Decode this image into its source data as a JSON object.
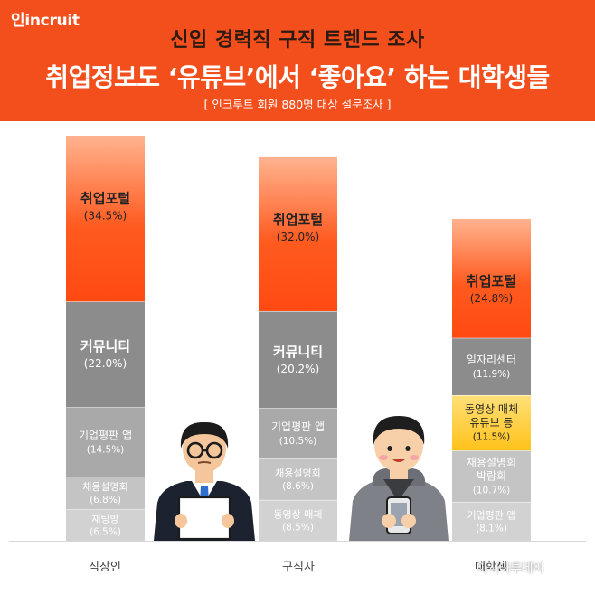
{
  "brand": {
    "logo": "incruit",
    "logo_prefix": "인"
  },
  "header": {
    "title1": "신입 경력직 구직 트렌드 조사",
    "title2": "취업정보도 ‘유튜브’에서 ‘좋아요’ 하는 대학생들",
    "subtitle": "[ 인크루트 회원 880명 대상 설문조사 ]"
  },
  "watermark": "아시아투데이",
  "colors": {
    "header": "#f24f1d",
    "portal": "#ff5a1f",
    "gray_dark": "#8c8c8c",
    "gray_mid": "#a9a9a9",
    "gray_light": "#c4c4c4",
    "gray_lighter": "#d2d2d2",
    "highlight": "#ffc21a"
  },
  "chart_data": {
    "type": "bar",
    "stacked": true,
    "grid": false,
    "legend": "none",
    "categories": [
      "직장인",
      "구직자",
      "대학생"
    ],
    "stacks": [
      {
        "category": "직장인",
        "segments": [
          {
            "label": "채팅방",
            "pct": "6.5%",
            "value": 6.5,
            "color": "#d2d2d2"
          },
          {
            "label": "채용설명회",
            "pct": "6.8%",
            "value": 6.8,
            "color": "#c4c4c4"
          },
          {
            "label": "기업평판 앱",
            "pct": "14.5%",
            "value": 14.5,
            "color": "#a9a9a9"
          },
          {
            "label": "커뮤니티",
            "pct": "22.0%",
            "value": 22.0,
            "color": "#8c8c8c"
          },
          {
            "label": "취업포털",
            "pct": "34.5%",
            "value": 34.5,
            "color": "#ff5a1f"
          }
        ]
      },
      {
        "category": "구직자",
        "segments": [
          {
            "label": "동영상 매체",
            "pct": "8.5%",
            "value": 8.5,
            "color": "#d2d2d2"
          },
          {
            "label": "채용설명회",
            "pct": "8.6%",
            "value": 8.6,
            "color": "#c4c4c4"
          },
          {
            "label": "기업평판 앱",
            "pct": "10.5%",
            "value": 10.5,
            "color": "#a9a9a9"
          },
          {
            "label": "커뮤니티",
            "pct": "20.2%",
            "value": 20.2,
            "color": "#8c8c8c"
          },
          {
            "label": "취업포털",
            "pct": "32.0%",
            "value": 32.0,
            "color": "#ff5a1f"
          }
        ]
      },
      {
        "category": "대학생",
        "segments": [
          {
            "label": "기업평판 앱",
            "pct": "8.1%",
            "value": 8.1,
            "color": "#d2d2d2"
          },
          {
            "label": "채용설명회 박람회",
            "pct": "10.7%",
            "value": 10.7,
            "color": "#c4c4c4"
          },
          {
            "label": "동영상 매체 유튜브 등",
            "pct": "11.5%",
            "value": 11.5,
            "color": "#ffc21a",
            "highlight": true
          },
          {
            "label": "일자리센터",
            "pct": "11.9%",
            "value": 11.9,
            "color": "#8c8c8c"
          },
          {
            "label": "취업포털",
            "pct": "24.8%",
            "value": 24.8,
            "color": "#ff5a1f"
          }
        ]
      }
    ]
  }
}
